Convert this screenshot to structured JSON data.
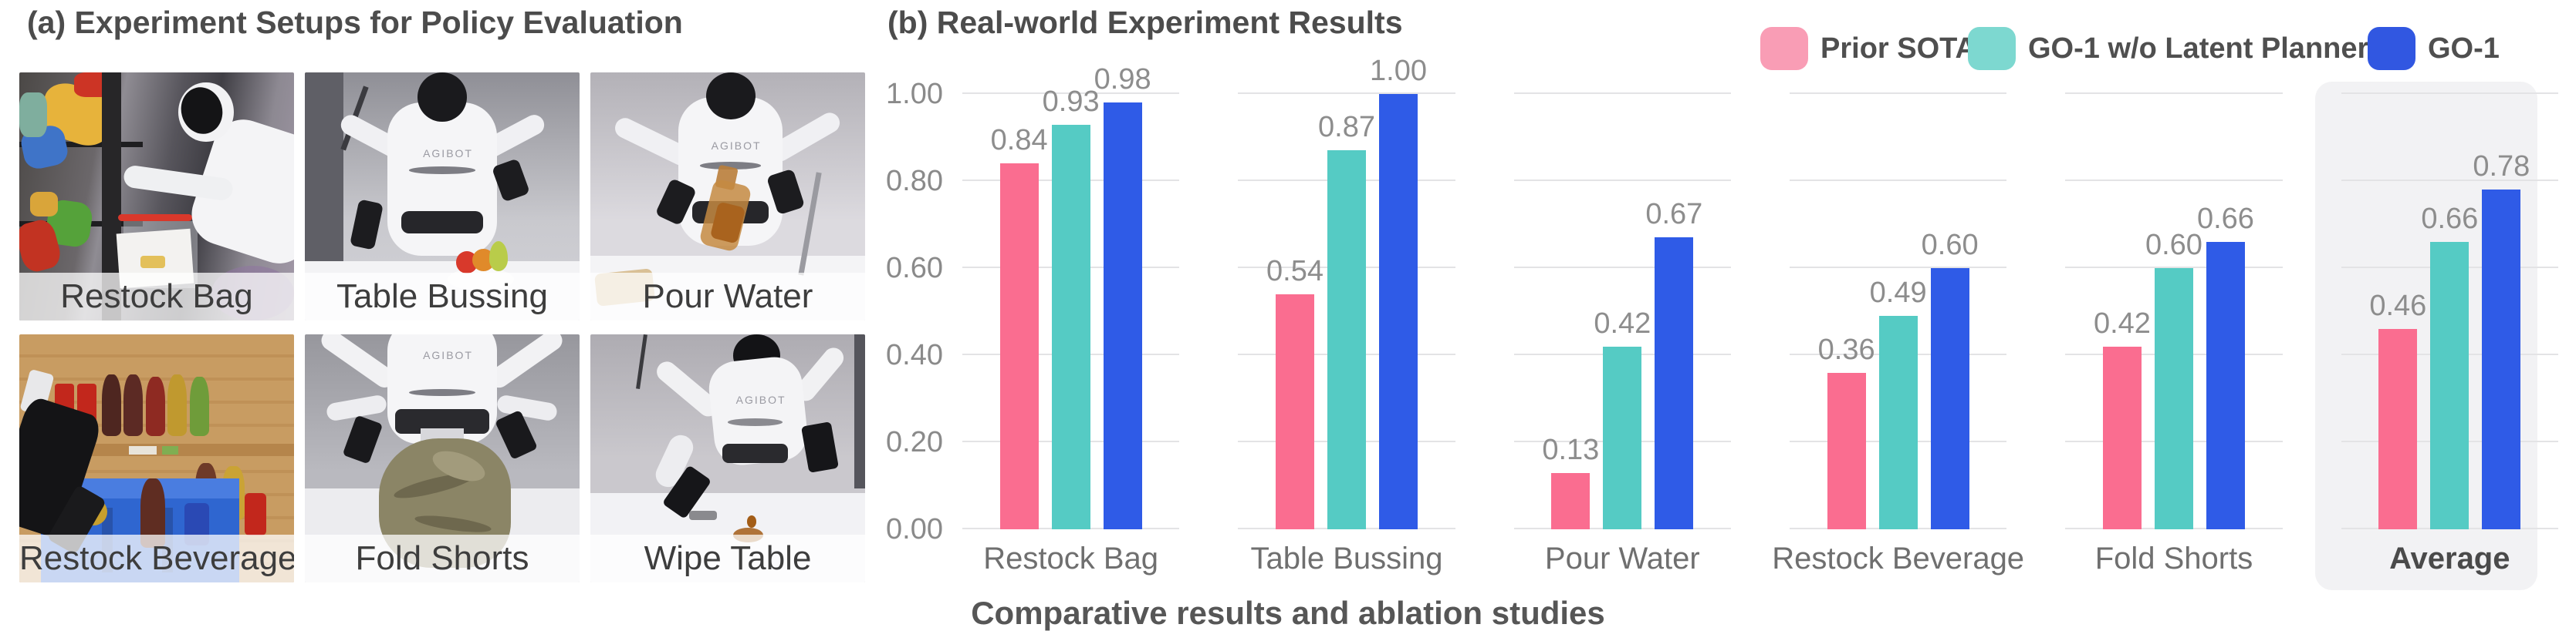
{
  "panel_a": {
    "title": "(a) Experiment Setups for Policy Evaluation",
    "robot_logo": "AGIBOT",
    "photos": [
      {
        "label": "Restock Bag"
      },
      {
        "label": "Table Bussing"
      },
      {
        "label": "Pour Water"
      },
      {
        "label": "Restock Beverage"
      },
      {
        "label": "Fold Shorts"
      },
      {
        "label": "Wipe Table"
      }
    ]
  },
  "panel_b": {
    "title": "(b) Real-world Experiment Results"
  },
  "caption": "Comparative results and ablation studies",
  "chart_data": {
    "type": "bar",
    "title": "(b) Real-world Experiment Results",
    "categories": [
      "Restock Bag",
      "Table Bussing",
      "Pour Water",
      "Restock Beverage",
      "Fold Shorts",
      "Average"
    ],
    "series": [
      {
        "name": "Prior SOTA",
        "color": "#FA6D90",
        "legend_color": "#F99DB5",
        "values": [
          0.84,
          0.54,
          0.13,
          0.36,
          0.42,
          0.46
        ]
      },
      {
        "name": "GO-1 w/o Latent Planner",
        "color": "#55CBC4",
        "legend_color": "#7DD8D0",
        "values": [
          0.93,
          0.87,
          0.42,
          0.49,
          0.6,
          0.66
        ]
      },
      {
        "name": "GO-1",
        "color": "#2F5BE7",
        "legend_color": "#3157E1",
        "values": [
          0.98,
          1.0,
          0.67,
          0.6,
          0.66,
          0.78
        ]
      }
    ],
    "ylim": [
      0,
      1.0
    ],
    "ytick_labels": [
      "0.00",
      "0.20",
      "0.40",
      "0.60",
      "0.80",
      "1.00"
    ],
    "grid": "horizontal gridlines drawn per category group with gaps between groups",
    "legend_position": "top-right",
    "value_labels": "above each bar, two decimals, gray",
    "highlighted_category": "Average",
    "highlight_color": "#f2f2f4",
    "gridline_color": "#e3e3e5"
  }
}
